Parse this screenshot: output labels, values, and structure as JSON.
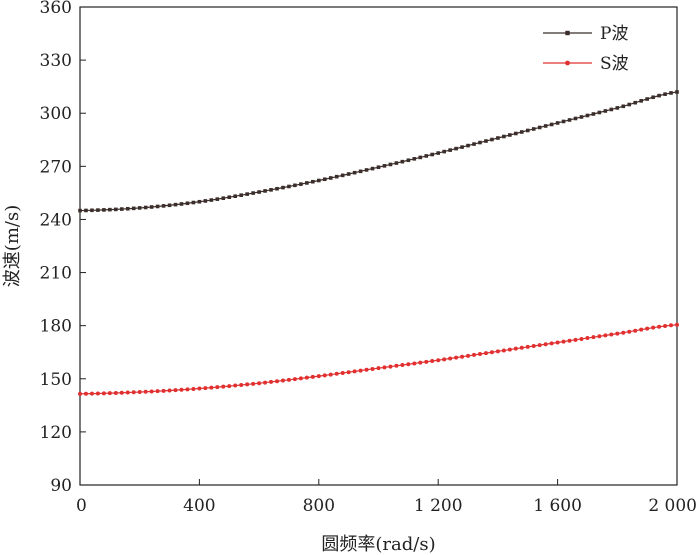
{
  "chart_data": {
    "type": "line",
    "title": "",
    "xlabel": "圆频率(rad/s)",
    "ylabel": "波速(m/s)",
    "xlim": [
      0,
      2000
    ],
    "ylim": [
      90,
      360
    ],
    "xticks": [
      0,
      400,
      800,
      1200,
      1600,
      2000
    ],
    "xtick_labels": [
      "0",
      "400",
      "800",
      "1 200",
      "1 600",
      "2 000"
    ],
    "yticks": [
      90,
      120,
      150,
      180,
      210,
      240,
      270,
      300,
      330,
      360
    ],
    "ytick_labels": [
      "90",
      "120",
      "150",
      "180",
      "210",
      "240",
      "270",
      "300",
      "330",
      "360"
    ],
    "grid": false,
    "legend_position": "top-right",
    "x": [
      0,
      200,
      400,
      600,
      800,
      1000,
      1200,
      1400,
      1600,
      1800,
      2000
    ],
    "series": [
      {
        "name": "P波",
        "color": "#3b2e2a",
        "marker": "square",
        "values": [
          245,
          246.5,
          250,
          255.5,
          262,
          269.5,
          277.5,
          286,
          294.5,
          303,
          312
        ]
      },
      {
        "name": "S波",
        "color": "#e03030",
        "marker": "circle",
        "values": [
          141.5,
          142.5,
          144.5,
          147.5,
          151.5,
          156,
          160.5,
          165.5,
          170.5,
          175.5,
          180.5
        ]
      }
    ]
  }
}
